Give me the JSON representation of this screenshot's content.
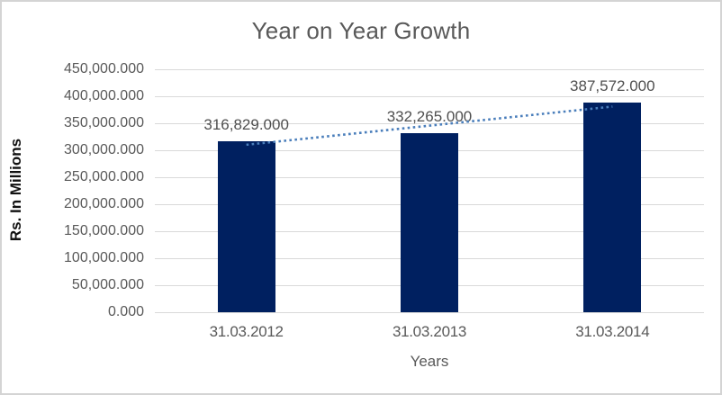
{
  "chart_data": {
    "type": "bar",
    "title": "Year on Year Growth",
    "categories": [
      "31.03.2012",
      "31.03.2013",
      "31.03.2014"
    ],
    "values": [
      316829,
      332265,
      387572
    ],
    "data_labels": [
      "316,829.000",
      "332,265.000",
      "387,572.000"
    ],
    "xlabel": "Years",
    "ylabel": "Rs. In Millions",
    "ylim": [
      0,
      450000
    ],
    "ytick_step": 50000,
    "ytick_labels": [
      "0.000",
      "50,000.000",
      "100,000.000",
      "150,000.000",
      "200,000.000",
      "250,000.000",
      "300,000.000",
      "350,000.000",
      "400,000.000",
      "450,000.000"
    ],
    "grid": true,
    "legend": "none",
    "bar_color": "#002060",
    "trendline": {
      "type": "linear",
      "style": "dotted",
      "color": "#4a7ebb"
    },
    "gridline_color": "#d9d9d9",
    "title_color": "#595959",
    "tick_color": "#595959",
    "frame_border_color": "#d4d4d4"
  }
}
